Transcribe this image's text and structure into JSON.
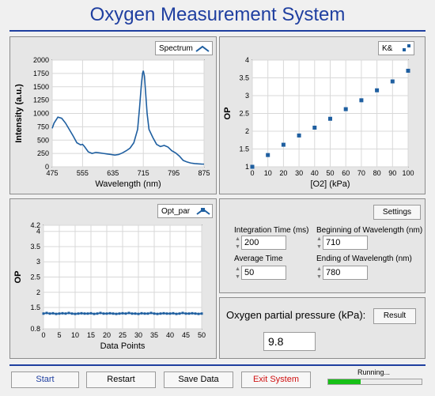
{
  "app_title": "Oxygen Measurement  System",
  "spectrum_plot": {
    "legend": "Spectrum",
    "xlabel": "Wavelength (nm)",
    "ylabel": "Intensity  (a.u.)"
  },
  "kd_plot": {
    "legend": "K&",
    "xlabel": "[O2] (kPa)",
    "ylabel": "OP"
  },
  "opt_plot": {
    "legend": "Opt_par",
    "xlabel": "Data Points",
    "ylabel": "OP"
  },
  "settings": {
    "button": "Settings",
    "integration_label": "Integration Time (ms)",
    "integration_value": "200",
    "begin_wl_label": "Beginning of Wavelength (nm)",
    "begin_wl_value": "710",
    "average_label": "Average Time",
    "average_value": "50",
    "end_wl_label": "Ending of Wavelength (nm)",
    "end_wl_value": "780"
  },
  "result": {
    "label": "Oxygen partial pressure (kPa):",
    "button": "Result",
    "value": "9.8"
  },
  "footer": {
    "start": "Start",
    "restart": "Restart",
    "save": "Save Data",
    "exit": "Exit System",
    "status": "Running...",
    "progress": 0.35
  },
  "colors": {
    "accent": "#1f3fa0",
    "series": "#1f5fa0",
    "exit": "#d01010",
    "progress": "#17c017"
  },
  "chart_data": [
    {
      "type": "line",
      "name": "spectrum",
      "series_name": "Spectrum",
      "xlabel": "Wavelength (nm)",
      "ylabel": "Intensity  (a.u.)",
      "xlim": [
        475,
        875
      ],
      "ylim": [
        0,
        2000
      ],
      "xticks": [
        475,
        555,
        635,
        715,
        795,
        875
      ],
      "yticks": [
        0,
        250,
        500,
        750,
        1000,
        1250,
        1500,
        1750,
        2000
      ],
      "grid": true,
      "x": [
        475,
        480,
        490,
        500,
        510,
        520,
        530,
        540,
        550,
        555,
        560,
        570,
        580,
        590,
        600,
        610,
        620,
        630,
        640,
        650,
        660,
        670,
        680,
        690,
        700,
        705,
        710,
        713,
        715,
        718,
        720,
        725,
        730,
        740,
        750,
        760,
        770,
        780,
        790,
        800,
        810,
        820,
        830,
        840,
        850,
        860,
        870,
        875
      ],
      "y": [
        720,
        820,
        930,
        910,
        820,
        700,
        580,
        450,
        410,
        420,
        380,
        280,
        250,
        270,
        260,
        250,
        240,
        230,
        220,
        230,
        260,
        300,
        350,
        450,
        700,
        1100,
        1550,
        1750,
        1800,
        1700,
        1500,
        1000,
        700,
        550,
        420,
        380,
        400,
        370,
        300,
        260,
        200,
        120,
        90,
        70,
        60,
        55,
        50,
        50
      ]
    },
    {
      "type": "scatter",
      "name": "kd",
      "series_name": "K&",
      "xlabel": "[O2] (kPa)",
      "ylabel": "OP",
      "xlim": [
        0,
        100
      ],
      "ylim": [
        1,
        4
      ],
      "xticks": [
        0,
        10,
        20,
        30,
        40,
        50,
        60,
        70,
        80,
        90,
        100
      ],
      "yticks": [
        1,
        1.5,
        2,
        2.5,
        3,
        3.5,
        4
      ],
      "grid": true,
      "x": [
        0,
        10,
        20,
        30,
        40,
        50,
        60,
        70,
        80,
        90,
        100
      ],
      "y": [
        1.0,
        1.33,
        1.62,
        1.88,
        2.1,
        2.35,
        2.62,
        2.87,
        3.15,
        3.4,
        3.7
      ]
    },
    {
      "type": "line",
      "name": "opt_par",
      "series_name": "Opt_par",
      "xlabel": "Data Points",
      "ylabel": "OP",
      "xlim": [
        0,
        50
      ],
      "ylim": [
        0.8,
        4.2
      ],
      "xticks": [
        0,
        5,
        10,
        15,
        20,
        25,
        30,
        35,
        40,
        45,
        50
      ],
      "yticks": [
        0.8,
        1.5,
        2,
        2.5,
        3,
        3.5,
        4,
        4.2
      ],
      "grid": true,
      "x": [
        0,
        1,
        2,
        3,
        4,
        5,
        6,
        7,
        8,
        9,
        10,
        11,
        12,
        13,
        14,
        15,
        16,
        17,
        18,
        19,
        20,
        21,
        22,
        23,
        24,
        25,
        26,
        27,
        28,
        29,
        30,
        31,
        32,
        33,
        34,
        35,
        36,
        37,
        38,
        39,
        40,
        41,
        42,
        43,
        44,
        45,
        46,
        47,
        48,
        49,
        50
      ],
      "y": [
        1.3,
        1.32,
        1.3,
        1.31,
        1.29,
        1.3,
        1.31,
        1.3,
        1.32,
        1.3,
        1.29,
        1.3,
        1.31,
        1.3,
        1.3,
        1.31,
        1.29,
        1.3,
        1.32,
        1.3,
        1.3,
        1.31,
        1.3,
        1.29,
        1.3,
        1.31,
        1.3,
        1.32,
        1.3,
        1.3,
        1.29,
        1.31,
        1.3,
        1.3,
        1.32,
        1.3,
        1.29,
        1.3,
        1.31,
        1.3,
        1.3,
        1.31,
        1.29,
        1.3,
        1.32,
        1.3,
        1.3,
        1.31,
        1.3,
        1.29,
        1.3
      ]
    }
  ]
}
